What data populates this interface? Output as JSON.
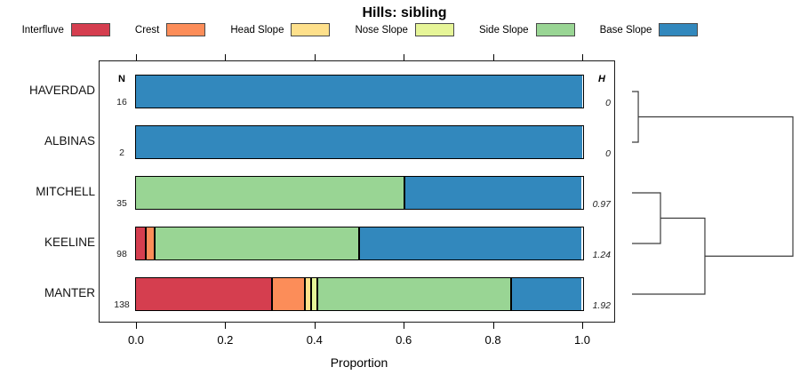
{
  "title": "Hills: sibling",
  "legend": {
    "items": [
      {
        "label": "Interfluve",
        "color": "#D53E4F"
      },
      {
        "label": "Crest",
        "color": "#FC8D59"
      },
      {
        "label": "Head Slope",
        "color": "#FEE08B"
      },
      {
        "label": "Nose Slope",
        "color": "#E6F598"
      },
      {
        "label": "Side Slope",
        "color": "#99D594"
      },
      {
        "label": "Base Slope",
        "color": "#3288BD"
      }
    ]
  },
  "columns": {
    "n_header": "N",
    "h_header": "H"
  },
  "axis": {
    "label": "Proportion",
    "ticks": [
      "0.0",
      "0.2",
      "0.4",
      "0.6",
      "0.8",
      "1.0"
    ],
    "tick_values": [
      0.0,
      0.2,
      0.4,
      0.6,
      0.8,
      1.0
    ]
  },
  "chart_data": {
    "type": "bar",
    "orientation": "horizontal-stacked",
    "title": "Hills: sibling",
    "xlabel": "Proportion",
    "xlim": [
      0,
      1
    ],
    "grid": false,
    "legend_position": "top",
    "categories": [
      "HAVERDAD",
      "ALBINAS",
      "MITCHELL",
      "KEELINE",
      "MANTER"
    ],
    "n_values": [
      "16",
      "2",
      "35",
      "98",
      "138"
    ],
    "h_values": [
      "0",
      "0",
      "0.97",
      "1.24",
      "1.92"
    ],
    "series": [
      {
        "name": "Interfluve",
        "color": "#D53E4F",
        "values": [
          0,
          0,
          0,
          0.02,
          0.304
        ]
      },
      {
        "name": "Crest",
        "color": "#FC8D59",
        "values": [
          0,
          0,
          0,
          0.02,
          0.073
        ]
      },
      {
        "name": "Head Slope",
        "color": "#FEE08B",
        "values": [
          0,
          0,
          0,
          0,
          0.014
        ]
      },
      {
        "name": "Nose Slope",
        "color": "#E6F598",
        "values": [
          0,
          0,
          0,
          0,
          0.014
        ]
      },
      {
        "name": "Side Slope",
        "color": "#99D594",
        "values": [
          0,
          0,
          0.6,
          0.46,
          0.435
        ]
      },
      {
        "name": "Base Slope",
        "color": "#3288BD",
        "values": [
          1.0,
          1.0,
          0.4,
          0.5,
          0.16
        ]
      }
    ],
    "dendrogram": {
      "leaf_order": [
        "HAVERDAD",
        "ALBINAS",
        "MITCHELL",
        "KEELINE",
        "MANTER"
      ],
      "merges": [
        {
          "a": {
            "leaf": 0
          },
          "b": {
            "leaf": 1
          },
          "height": 0.039
        },
        {
          "a": {
            "leaf": 2
          },
          "b": {
            "leaf": 3
          },
          "height": 0.177
        },
        {
          "a": {
            "merge": 1
          },
          "b": {
            "leaf": 4
          },
          "height": 0.453
        },
        {
          "a": {
            "merge": 0
          },
          "b": {
            "merge": 2
          },
          "height": 1.0
        }
      ]
    }
  }
}
